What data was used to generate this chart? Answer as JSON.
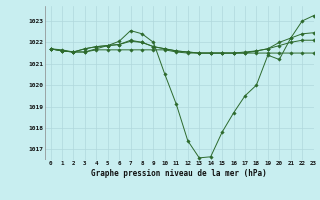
{
  "title": "Graphe pression niveau de la mer (hPa)",
  "bg_color": "#c8eef0",
  "line_color": "#2d6a2d",
  "grid_color": "#b0d8dc",
  "xlim": [
    -0.5,
    23
  ],
  "ylim": [
    1016.5,
    1023.7
  ],
  "yticks": [
    1017,
    1018,
    1019,
    1020,
    1021,
    1022,
    1023
  ],
  "xticks": [
    0,
    1,
    2,
    3,
    4,
    5,
    6,
    7,
    8,
    9,
    10,
    11,
    12,
    13,
    14,
    15,
    16,
    17,
    18,
    19,
    20,
    21,
    22,
    23
  ],
  "series": [
    [
      1021.7,
      1021.65,
      1021.55,
      1021.55,
      1021.7,
      1021.85,
      1022.05,
      1022.55,
      1022.4,
      1022.0,
      1020.5,
      1019.1,
      1017.4,
      1016.6,
      1016.65,
      1017.8,
      1018.7,
      1019.5,
      1020.0,
      1021.4,
      1021.2,
      1022.2,
      1023.0,
      1023.25
    ],
    [
      1021.7,
      1021.6,
      1021.55,
      1021.55,
      1021.65,
      1021.65,
      1021.65,
      1021.65,
      1021.65,
      1021.65,
      1021.65,
      1021.55,
      1021.5,
      1021.5,
      1021.5,
      1021.5,
      1021.5,
      1021.5,
      1021.5,
      1021.5,
      1021.5,
      1021.5,
      1021.5,
      1021.5
    ],
    [
      1021.7,
      1021.6,
      1021.55,
      1021.7,
      1021.8,
      1021.85,
      1021.9,
      1022.1,
      1022.0,
      1021.8,
      1021.7,
      1021.6,
      1021.55,
      1021.5,
      1021.5,
      1021.5,
      1021.5,
      1021.5,
      1021.6,
      1021.7,
      1021.85,
      1022.0,
      1022.1,
      1022.1
    ],
    [
      1021.7,
      1021.6,
      1021.55,
      1021.7,
      1021.8,
      1021.85,
      1021.9,
      1022.05,
      1022.0,
      1021.8,
      1021.7,
      1021.6,
      1021.55,
      1021.5,
      1021.5,
      1021.5,
      1021.5,
      1021.55,
      1021.6,
      1021.7,
      1022.0,
      1022.2,
      1022.4,
      1022.45
    ]
  ],
  "figsize": [
    3.2,
    2.0
  ],
  "dpi": 100
}
